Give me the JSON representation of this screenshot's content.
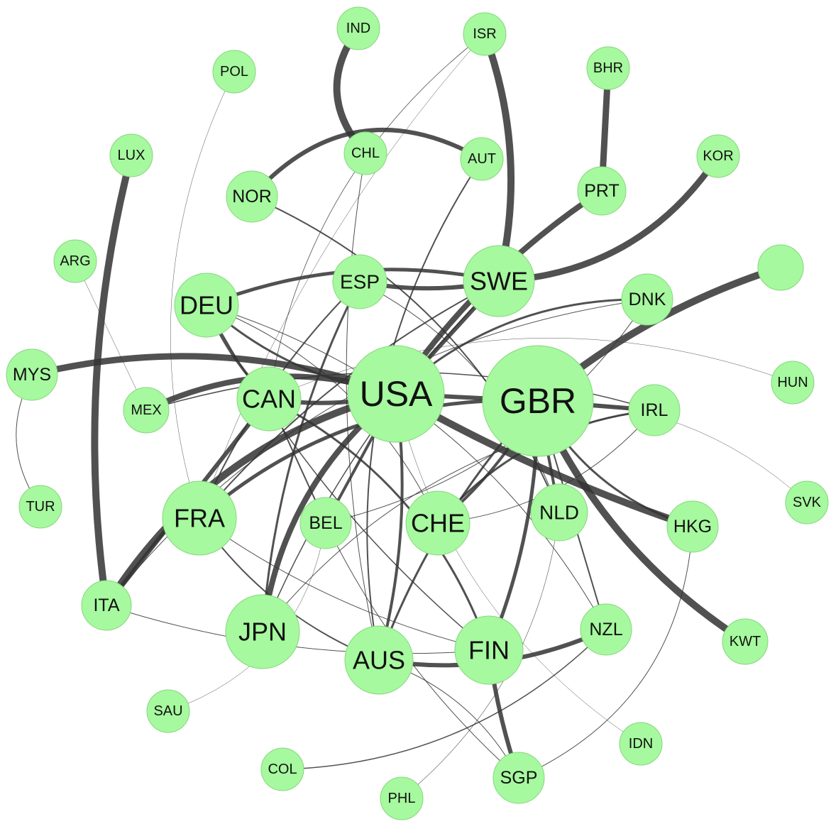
{
  "nodes": [
    {
      "label": "IND"
    },
    {
      "label": "ISR"
    },
    {
      "label": "POL"
    },
    {
      "label": "BHR"
    },
    {
      "label": "LUX"
    },
    {
      "label": "CHL"
    },
    {
      "label": "AUT"
    },
    {
      "label": "KOR"
    },
    {
      "label": "NOR"
    },
    {
      "label": "PRT"
    },
    {
      "label": "ARG"
    },
    {
      "label": "ESP"
    },
    {
      "label": "SWE"
    },
    {
      "label": "DEU"
    },
    {
      "label": "DNK"
    },
    {
      "label": "MYS"
    },
    {
      "label": "USA"
    },
    {
      "label": "GBR"
    },
    {
      "label": "HUN"
    },
    {
      "label": "CAN"
    },
    {
      "label": "MEX"
    },
    {
      "label": "IRL"
    },
    {
      "label": "TUR"
    },
    {
      "label": "FRA"
    },
    {
      "label": "BEL"
    },
    {
      "label": "CHE"
    },
    {
      "label": "NLD"
    },
    {
      "label": "HKG"
    },
    {
      "label": "SVK"
    },
    {
      "label": "ITA"
    },
    {
      "label": "JPN"
    },
    {
      "label": "NZL"
    },
    {
      "label": "AUS"
    },
    {
      "label": "FIN"
    },
    {
      "label": "KWT"
    },
    {
      "label": "SAU"
    },
    {
      "label": "IDN"
    },
    {
      "label": "COL"
    },
    {
      "label": "SGP"
    },
    {
      "label": "PHL"
    }
  ]
}
